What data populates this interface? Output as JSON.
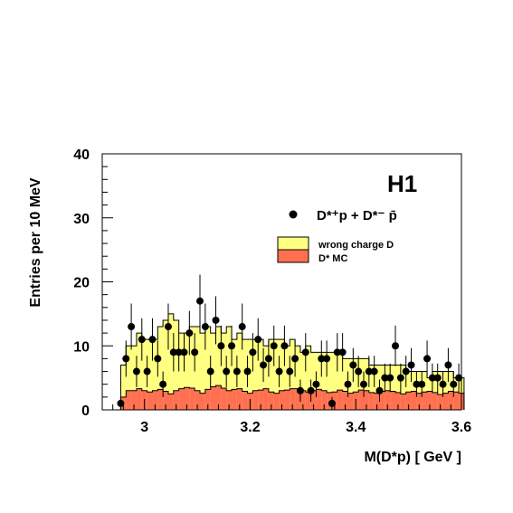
{
  "chart_data": {
    "type": "bar",
    "experiment_label": "H1",
    "xlabel": "M(D*p) [ GeV ]",
    "ylabel": "Entries per 10 MeV",
    "xlim": [
      2.92,
      3.6
    ],
    "ylim": [
      0,
      40
    ],
    "xticks": [
      3.0,
      3.2,
      3.4,
      3.6
    ],
    "xtick_labels": [
      "3",
      "3.2",
      "3.4",
      "3.6"
    ],
    "yticks": [
      0,
      10,
      20,
      30,
      40
    ],
    "ytick_labels": [
      "0",
      "10",
      "20",
      "30",
      "40"
    ],
    "grid": false,
    "legend_position": "top-right",
    "legend": {
      "data_label": "D*⁺p + D*⁻ p̄",
      "wrong_charge_label": "wrong charge D",
      "mc_label": "D* MC"
    },
    "colors": {
      "wrong_charge_fill": "#ffff80",
      "mc_fill": "#ff7050",
      "outline": "#000000",
      "data_marker": "#000000"
    },
    "bin_width": 0.01,
    "bin_start": 2.955,
    "wrong_charge_D": [
      7,
      10,
      10,
      12,
      11,
      11,
      11,
      13,
      14,
      15,
      14,
      12,
      12,
      13,
      13,
      12,
      13,
      12,
      13,
      12,
      13,
      11,
      12,
      11,
      11,
      11,
      11,
      10,
      11,
      11,
      11,
      10,
      11,
      10,
      9,
      10,
      9,
      9,
      9,
      9,
      9,
      9,
      8,
      8,
      8,
      8,
      8,
      7,
      7,
      7,
      7,
      7,
      7,
      7,
      6,
      6,
      6,
      6,
      5,
      6,
      6,
      6,
      6,
      5,
      5
    ],
    "D_star_MC": [
      2.0,
      3.0,
      3.0,
      3.3,
      3.0,
      2.8,
      3.0,
      3.2,
      2.9,
      2.5,
      3.0,
      3.3,
      3.5,
      3.4,
      3.0,
      2.6,
      3.2,
      3.6,
      3.8,
      3.4,
      3.0,
      3.2,
      3.3,
      2.9,
      2.6,
      3.0,
      3.1,
      3.3,
      2.8,
      2.6,
      3.0,
      3.1,
      3.3,
      3.3,
      3.0,
      2.8,
      3.0,
      3.2,
      3.0,
      2.7,
      2.8,
      3.1,
      2.9,
      2.6,
      2.8,
      3.1,
      3.0,
      2.7,
      2.6,
      2.9,
      3.0,
      2.9,
      2.7,
      2.5,
      2.8,
      2.9,
      2.6,
      2.8,
      2.9,
      2.7,
      2.4,
      2.6,
      2.9,
      2.8,
      2.6
    ],
    "data_points": [
      {
        "x": 2.955,
        "y": 1
      },
      {
        "x": 2.965,
        "y": 8
      },
      {
        "x": 2.975,
        "y": 13
      },
      {
        "x": 2.985,
        "y": 6
      },
      {
        "x": 2.995,
        "y": 11
      },
      {
        "x": 3.005,
        "y": 6
      },
      {
        "x": 3.015,
        "y": 11
      },
      {
        "x": 3.025,
        "y": 8
      },
      {
        "x": 3.035,
        "y": 4
      },
      {
        "x": 3.045,
        "y": 13
      },
      {
        "x": 3.055,
        "y": 9
      },
      {
        "x": 3.065,
        "y": 9
      },
      {
        "x": 3.075,
        "y": 9
      },
      {
        "x": 3.085,
        "y": 12
      },
      {
        "x": 3.095,
        "y": 9
      },
      {
        "x": 3.105,
        "y": 17
      },
      {
        "x": 3.115,
        "y": 13
      },
      {
        "x": 3.125,
        "y": 6
      },
      {
        "x": 3.135,
        "y": 14
      },
      {
        "x": 3.145,
        "y": 10
      },
      {
        "x": 3.155,
        "y": 6
      },
      {
        "x": 3.165,
        "y": 10
      },
      {
        "x": 3.175,
        "y": 6
      },
      {
        "x": 3.185,
        "y": 13
      },
      {
        "x": 3.195,
        "y": 6
      },
      {
        "x": 3.205,
        "y": 9
      },
      {
        "x": 3.215,
        "y": 11
      },
      {
        "x": 3.225,
        "y": 7
      },
      {
        "x": 3.235,
        "y": 8
      },
      {
        "x": 3.245,
        "y": 10
      },
      {
        "x": 3.255,
        "y": 6
      },
      {
        "x": 3.265,
        "y": 10
      },
      {
        "x": 3.275,
        "y": 6
      },
      {
        "x": 3.285,
        "y": 8
      },
      {
        "x": 3.295,
        "y": 3
      },
      {
        "x": 3.305,
        "y": 9
      },
      {
        "x": 3.315,
        "y": 3
      },
      {
        "x": 3.325,
        "y": 4
      },
      {
        "x": 3.335,
        "y": 8
      },
      {
        "x": 3.345,
        "y": 8
      },
      {
        "x": 3.355,
        "y": 1
      },
      {
        "x": 3.365,
        "y": 9
      },
      {
        "x": 3.375,
        "y": 9
      },
      {
        "x": 3.385,
        "y": 4
      },
      {
        "x": 3.395,
        "y": 7
      },
      {
        "x": 3.405,
        "y": 6
      },
      {
        "x": 3.415,
        "y": 4
      },
      {
        "x": 3.425,
        "y": 6
      },
      {
        "x": 3.435,
        "y": 6
      },
      {
        "x": 3.445,
        "y": 3
      },
      {
        "x": 3.455,
        "y": 5
      },
      {
        "x": 3.465,
        "y": 5
      },
      {
        "x": 3.475,
        "y": 10
      },
      {
        "x": 3.485,
        "y": 5
      },
      {
        "x": 3.495,
        "y": 6
      },
      {
        "x": 3.505,
        "y": 7
      },
      {
        "x": 3.515,
        "y": 4
      },
      {
        "x": 3.525,
        "y": 4
      },
      {
        "x": 3.535,
        "y": 8
      },
      {
        "x": 3.545,
        "y": 5
      },
      {
        "x": 3.555,
        "y": 5
      },
      {
        "x": 3.565,
        "y": 4
      },
      {
        "x": 3.575,
        "y": 7
      },
      {
        "x": 3.585,
        "y": 4
      },
      {
        "x": 3.595,
        "y": 5
      }
    ]
  }
}
